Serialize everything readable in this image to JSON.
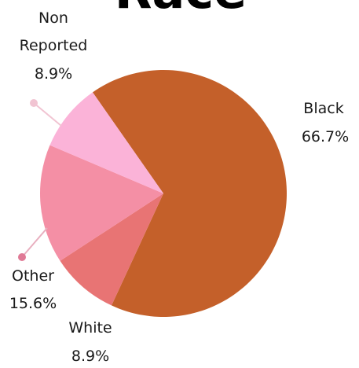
{
  "chart_data": {
    "type": "pie",
    "title": "Race",
    "slices": [
      {
        "label": "Black",
        "percent_label": "66.7%",
        "value": 66.7,
        "color": "#C4602A"
      },
      {
        "label": "White",
        "percent_label": "8.9%",
        "value": 8.9,
        "color": "#E87474"
      },
      {
        "label": "Other",
        "percent_label": "15.6%",
        "value": 15.6,
        "color": "#F48FA5"
      },
      {
        "label_lines": [
          "Non",
          "Reported"
        ],
        "percent_label": "8.9%",
        "value": 8.9,
        "color": "#FBB3D8"
      }
    ],
    "start_angle_deg": -35,
    "direction": "clockwise",
    "legend": "none"
  }
}
